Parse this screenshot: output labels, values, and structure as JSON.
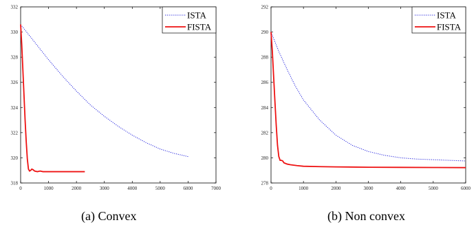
{
  "colors": {
    "ista": "#2222dd",
    "fista": "#ee1111",
    "axis": "#000000"
  },
  "chart_data": [
    {
      "type": "line",
      "caption": "(a) Convex",
      "xlim": [
        0,
        7000
      ],
      "ylim": [
        318,
        332
      ],
      "xticks": [
        0,
        1000,
        2000,
        3000,
        4000,
        5000,
        6000,
        7000
      ],
      "yticks": [
        318,
        320,
        322,
        324,
        326,
        328,
        330,
        332
      ],
      "grid": false,
      "legend_position": "top-right",
      "series": [
        {
          "name": "ISTA",
          "style": "dotted",
          "color": "#2222dd",
          "x": [
            0,
            250,
            500,
            1000,
            1500,
            2000,
            2500,
            3000,
            3500,
            4000,
            4500,
            5000,
            5500,
            6000
          ],
          "y": [
            330.6,
            329.9,
            329.2,
            327.8,
            326.5,
            325.3,
            324.2,
            323.3,
            322.5,
            321.8,
            321.2,
            320.7,
            320.35,
            320.1
          ]
        },
        {
          "name": "FISTA",
          "style": "solid",
          "color": "#ee1111",
          "x": [
            0,
            40,
            80,
            120,
            160,
            200,
            240,
            280,
            320,
            360,
            400,
            450,
            500,
            600,
            700,
            800,
            1000,
            1500,
            2000,
            2300
          ],
          "y": [
            330.6,
            329.0,
            327.0,
            325.0,
            323.0,
            321.3,
            319.9,
            319.1,
            318.95,
            319.0,
            319.1,
            319.05,
            318.95,
            318.9,
            318.95,
            318.9,
            318.9,
            318.9,
            318.9,
            318.9
          ]
        }
      ]
    },
    {
      "type": "line",
      "caption": "(b) Non convex",
      "xlim": [
        0,
        6000
      ],
      "ylim": [
        278,
        292
      ],
      "xticks": [
        0,
        1000,
        2000,
        3000,
        4000,
        5000,
        6000
      ],
      "yticks": [
        278,
        280,
        282,
        284,
        286,
        288,
        290,
        292
      ],
      "grid": false,
      "legend_position": "top-right",
      "series": [
        {
          "name": "ISTA",
          "style": "dotted",
          "color": "#2222dd",
          "x": [
            0,
            250,
            500,
            750,
            1000,
            1500,
            2000,
            2500,
            3000,
            3500,
            4000,
            4500,
            5000,
            5500,
            6000
          ],
          "y": [
            290.0,
            288.4,
            287.0,
            285.7,
            284.6,
            283.0,
            281.8,
            281.0,
            280.5,
            280.2,
            280.0,
            279.9,
            279.85,
            279.8,
            279.75
          ]
        },
        {
          "name": "FISTA",
          "style": "solid",
          "color": "#ee1111",
          "x": [
            0,
            40,
            80,
            120,
            160,
            200,
            240,
            280,
            320,
            360,
            400,
            500,
            600,
            800,
            1000,
            1500,
            2000,
            3000,
            4000,
            5000,
            6000
          ],
          "y": [
            290.0,
            288.5,
            286.5,
            284.5,
            282.6,
            281.0,
            280.1,
            279.8,
            279.8,
            279.75,
            279.6,
            279.5,
            279.45,
            279.38,
            279.33,
            279.3,
            279.28,
            279.25,
            279.24,
            279.23,
            279.22
          ]
        }
      ]
    }
  ]
}
